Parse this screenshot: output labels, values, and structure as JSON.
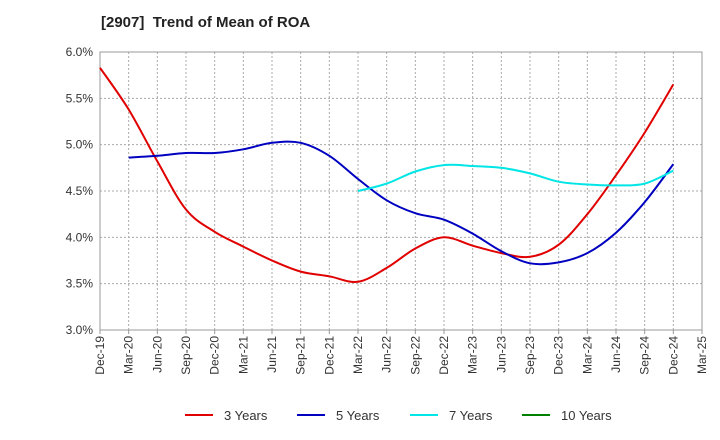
{
  "chart_data": {
    "type": "line",
    "title": "[2907]  Trend of Mean of ROA",
    "xlabel": "",
    "ylabel": "",
    "x_categories": [
      "Dec-19",
      "Mar-20",
      "Jun-20",
      "Sep-20",
      "Dec-20",
      "Mar-21",
      "Jun-21",
      "Sep-21",
      "Dec-21",
      "Mar-22",
      "Jun-22",
      "Sep-22",
      "Dec-22",
      "Mar-23",
      "Jun-23",
      "Sep-23",
      "Dec-23",
      "Mar-24",
      "Jun-24",
      "Sep-24",
      "Dec-24",
      "Mar-25"
    ],
    "y_ticks": [
      "3.0%",
      "3.5%",
      "4.0%",
      "4.5%",
      "5.0%",
      "5.5%",
      "6.0%"
    ],
    "ylim": [
      3.0,
      6.0
    ],
    "grid": "dotted",
    "legend_position": "bottom",
    "series": [
      {
        "name": "3 Years",
        "color": "#e00000",
        "values": [
          5.83,
          5.38,
          4.82,
          4.3,
          4.06,
          3.9,
          3.75,
          3.63,
          3.58,
          3.52,
          3.67,
          3.88,
          4.0,
          3.91,
          3.83,
          3.79,
          3.92,
          4.25,
          4.67,
          5.13,
          5.65,
          null
        ]
      },
      {
        "name": "5 Years",
        "color": "#0000c0",
        "values": [
          null,
          4.86,
          4.88,
          4.91,
          4.91,
          4.95,
          5.02,
          5.02,
          4.88,
          4.63,
          4.4,
          4.26,
          4.19,
          4.04,
          3.85,
          3.72,
          3.73,
          3.83,
          4.05,
          4.38,
          4.79,
          null
        ]
      },
      {
        "name": "7 Years",
        "color": "#00e5e5",
        "values": [
          null,
          null,
          null,
          null,
          null,
          null,
          null,
          null,
          null,
          4.5,
          4.58,
          4.71,
          4.78,
          4.77,
          4.75,
          4.69,
          4.6,
          4.57,
          4.56,
          4.58,
          4.72,
          null
        ]
      },
      {
        "name": "10 Years",
        "color": "#008000",
        "values": [
          null,
          null,
          null,
          null,
          null,
          null,
          null,
          null,
          null,
          null,
          null,
          null,
          null,
          null,
          null,
          null,
          null,
          null,
          null,
          null,
          null,
          null
        ]
      }
    ]
  }
}
